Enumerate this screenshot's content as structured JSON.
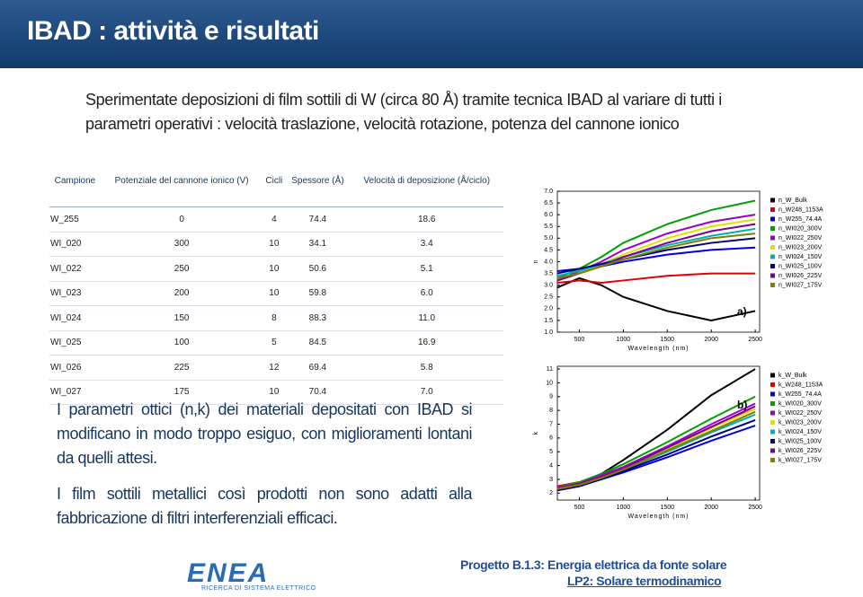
{
  "header": {
    "title": "IBAD : attività e risultati"
  },
  "intro": "Sperimentate deposizioni di film sottili di W (circa 80 Å) tramite tecnica IBAD al variare di tutti i parametri operativi : velocità traslazione, velocità rotazione, potenza del cannone ionico",
  "table": {
    "headers": [
      "Campione",
      "Potenziale del cannone ionico (V)",
      "Cicli",
      "Spessore (Å)",
      "Velocità di deposizione (Å/ciclo)"
    ],
    "rows": [
      [
        "W_255",
        "0",
        "4",
        "74.4",
        "18.6"
      ],
      [
        "WI_020",
        "300",
        "10",
        "34.1",
        "3.4"
      ],
      [
        "WI_022",
        "250",
        "10",
        "50.6",
        "5.1"
      ],
      [
        "WI_023",
        "200",
        "10",
        "59.8",
        "6.0"
      ],
      [
        "WI_024",
        "150",
        "8",
        "88.3",
        "11.0"
      ],
      [
        "WI_025",
        "100",
        "5",
        "84.5",
        "16.9"
      ],
      [
        "WI_026",
        "225",
        "12",
        "69.4",
        "5.8"
      ],
      [
        "WI_027",
        "175",
        "10",
        "70.4",
        "7.0"
      ]
    ]
  },
  "paragraphs": [
    "I parametri ottici (n,k) dei materiali depositati con IBAD si modificano in modo troppo esiguo, con miglioramenti lontani da quelli attesi.",
    "I film sottili metallici così prodotti non sono adatti alla fabbricazione di filtri interferenziali efficaci."
  ],
  "footer": {
    "logo": "ENEA",
    "logo_sub": "RICERCA DI SISTEMA ELETTRICO",
    "project": "Progetto B.1.3: Energia elettrica da fonte solare",
    "line": "LP2: Solare termodinamico"
  },
  "chart_data": [
    {
      "type": "line",
      "annotation": "a)",
      "x_label": "Wavelength (nm)",
      "y_label": "n",
      "x": [
        250,
        500,
        750,
        1000,
        1500,
        2000,
        2500
      ],
      "xlim": [
        250,
        2550
      ],
      "xticks": [
        500,
        1000,
        1500,
        2000,
        2500
      ],
      "ylim": [
        1.0,
        7.0
      ],
      "yticks": [
        {
          "value": 1.0,
          "label": "1.0"
        },
        1.5,
        {
          "value": 2.0,
          "label": "2.0"
        },
        2.5,
        {
          "value": 3.0,
          "label": "3.0"
        },
        3.5,
        {
          "value": 4.0,
          "label": "4.0"
        },
        4.5,
        {
          "value": 5.0,
          "label": "5.0"
        },
        5.5,
        {
          "value": 6.0,
          "label": "6.0"
        },
        6.5,
        {
          "value": 7.0,
          "label": "7.0"
        }
      ],
      "series": [
        {
          "name": "n_W_Bulk",
          "color": "#000000",
          "values": [
            2.9,
            3.3,
            3.0,
            2.5,
            1.9,
            1.5,
            1.9
          ]
        },
        {
          "name": "n_W248_1153A",
          "color": "#e00000",
          "values": [
            3.1,
            3.2,
            3.1,
            3.2,
            3.4,
            3.5,
            3.5
          ]
        },
        {
          "name": "n_W255_74.4A",
          "color": "#0000e0",
          "values": [
            3.6,
            3.7,
            3.8,
            4.0,
            4.3,
            4.5,
            4.6
          ]
        },
        {
          "name": "n_WI020_300V",
          "color": "#00a000",
          "values": [
            3.3,
            3.7,
            4.2,
            4.8,
            5.6,
            6.2,
            6.6
          ]
        },
        {
          "name": "n_WI022_250V",
          "color": "#9900cc",
          "values": [
            3.2,
            3.6,
            4.0,
            4.5,
            5.2,
            5.7,
            6.0
          ]
        },
        {
          "name": "n_WI023_200V",
          "color": "#e0e000",
          "values": [
            3.2,
            3.5,
            3.9,
            4.3,
            5.0,
            5.5,
            5.8
          ]
        },
        {
          "name": "n_WI024_150V",
          "color": "#00b0b0",
          "values": [
            3.4,
            3.6,
            3.9,
            4.2,
            4.7,
            5.1,
            5.4
          ]
        },
        {
          "name": "n_WI025_100V",
          "color": "#000080",
          "values": [
            3.5,
            3.7,
            3.9,
            4.1,
            4.5,
            4.8,
            5.0
          ]
        },
        {
          "name": "n_WI026_225V",
          "color": "#7b0099",
          "values": [
            3.2,
            3.5,
            3.8,
            4.2,
            4.8,
            5.3,
            5.6
          ]
        },
        {
          "name": "n_WI027_175V",
          "color": "#808000",
          "values": [
            3.3,
            3.5,
            3.8,
            4.1,
            4.6,
            5.0,
            5.2
          ]
        }
      ]
    },
    {
      "type": "line",
      "annotation": "b)",
      "x_label": "Wavelength (nm)",
      "y_label": "k",
      "x": [
        250,
        500,
        750,
        1000,
        1500,
        2000,
        2500
      ],
      "xlim": [
        250,
        2550
      ],
      "xticks": [
        500,
        1000,
        1500,
        2000,
        2500
      ],
      "ylim": [
        1.5,
        11.2
      ],
      "yticks": [
        2,
        3,
        4,
        5,
        6,
        7,
        8,
        9,
        10,
        11
      ],
      "series": [
        {
          "name": "k_W_Bulk",
          "color": "#000000",
          "values": [
            2.2,
            2.6,
            3.4,
            4.4,
            6.6,
            9.1,
            11.0
          ]
        },
        {
          "name": "k_W248_1153A",
          "color": "#e00000",
          "values": [
            2.5,
            2.8,
            3.3,
            3.9,
            5.3,
            6.8,
            8.1
          ]
        },
        {
          "name": "k_W255_74.4A",
          "color": "#0000e0",
          "values": [
            2.3,
            2.6,
            3.0,
            3.5,
            4.6,
            5.8,
            6.9
          ]
        },
        {
          "name": "k_WI020_300V",
          "color": "#00a000",
          "values": [
            2.4,
            2.8,
            3.4,
            4.1,
            5.7,
            7.4,
            9.0
          ]
        },
        {
          "name": "k_WI022_250V",
          "color": "#9900cc",
          "values": [
            2.4,
            2.7,
            3.3,
            3.9,
            5.4,
            7.0,
            8.5
          ]
        },
        {
          "name": "k_WI023_200V",
          "color": "#e0e000",
          "values": [
            2.3,
            2.7,
            3.2,
            3.8,
            5.2,
            6.7,
            8.1
          ]
        },
        {
          "name": "k_WI024_150V",
          "color": "#00b0b0",
          "values": [
            2.3,
            2.6,
            3.1,
            3.7,
            5.0,
            6.4,
            7.7
          ]
        },
        {
          "name": "k_WI025_100V",
          "color": "#000080",
          "values": [
            2.2,
            2.5,
            3.0,
            3.6,
            4.8,
            6.1,
            7.3
          ]
        },
        {
          "name": "k_WI026_225V",
          "color": "#7b0099",
          "values": [
            2.3,
            2.7,
            3.2,
            3.8,
            5.3,
            6.8,
            8.3
          ]
        },
        {
          "name": "k_WI027_175V",
          "color": "#808000",
          "values": [
            2.3,
            2.6,
            3.1,
            3.7,
            5.1,
            6.5,
            7.9
          ]
        }
      ]
    }
  ]
}
